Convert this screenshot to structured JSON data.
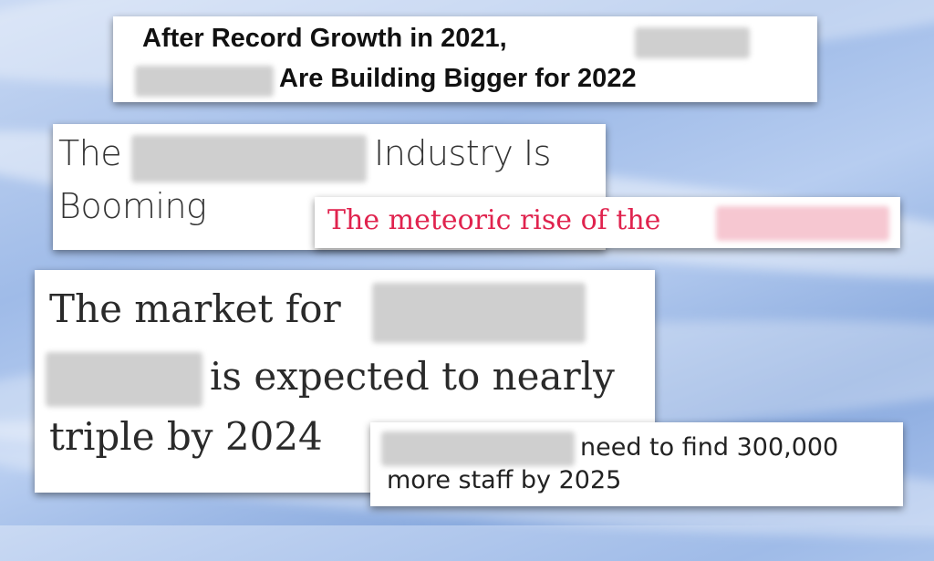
{
  "headline_1": {
    "line1": "After Record Growth in 2021,",
    "line2": "Are Building Bigger for 2022"
  },
  "headline_2": {
    "word1": "The",
    "word2": "Industry Is",
    "word3": "Booming"
  },
  "headline_3": {
    "text": "The meteoric rise of the",
    "accent_color": "#e0234e"
  },
  "headline_4": {
    "line1": "The market for",
    "line2": "is expected to nearly",
    "line3": "triple by 2024"
  },
  "headline_5": {
    "line1": "need to find 300,000",
    "line2": "more staff by 2025"
  }
}
